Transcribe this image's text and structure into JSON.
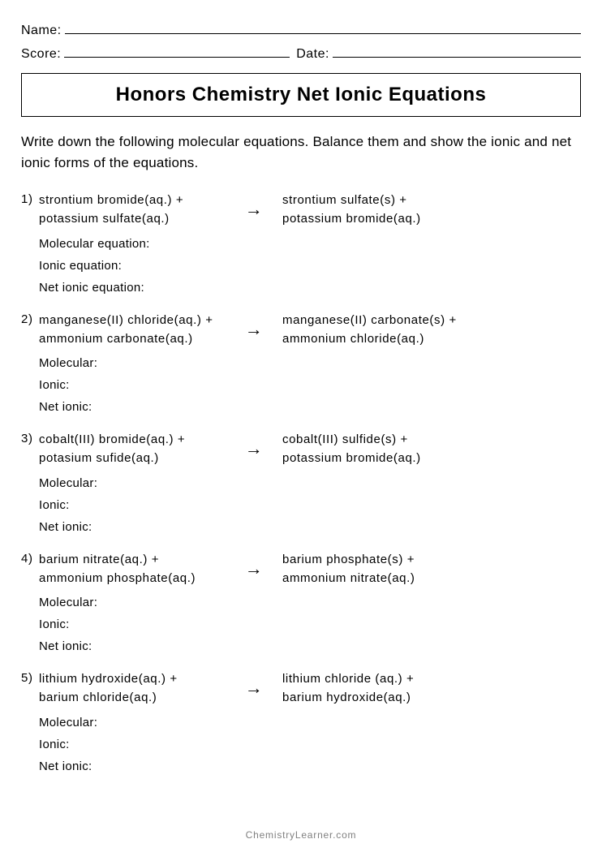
{
  "header": {
    "name_label": "Name:",
    "score_label": "Score:",
    "date_label": "Date:"
  },
  "title": "Honors Chemistry Net Ionic Equations",
  "instructions": "Write down the following molecular equations. Balance them and show the ionic and net ionic forms of the equations.",
  "arrow": "→",
  "questions": [
    {
      "num": "1)",
      "reactant1": "strontium bromide(aq.) +",
      "reactant2": "potassium sulfate(aq.)",
      "product1": "strontium sulfate(s) +",
      "product2": "potassium bromide(aq.)",
      "sub1": "Molecular equation:",
      "sub2": "Ionic equation:",
      "sub3": "Net ionic equation:"
    },
    {
      "num": "2)",
      "reactant1": "manganese(II) chloride(aq.) +",
      "reactant2": "ammonium carbonate(aq.)",
      "product1": "manganese(II) carbonate(s) +",
      "product2": "ammonium chloride(aq.)",
      "sub1": "Molecular:",
      "sub2": "Ionic:",
      "sub3": "Net ionic:"
    },
    {
      "num": "3)",
      "reactant1": "cobalt(III) bromide(aq.) +",
      "reactant2": "potasium sufide(aq.)",
      "product1": "cobalt(III) sulfide(s) +",
      "product2": "potassium bromide(aq.)",
      "sub1": "Molecular:",
      "sub2": "Ionic:",
      "sub3": "Net ionic:"
    },
    {
      "num": "4)",
      "reactant1": "barium nitrate(aq.) +",
      "reactant2": "ammonium phosphate(aq.)",
      "product1": "barium phosphate(s) +",
      "product2": "ammonium nitrate(aq.)",
      "sub1": "Molecular:",
      "sub2": "Ionic:",
      "sub3": "Net ionic:"
    },
    {
      "num": "5)",
      "reactant1": "lithium hydroxide(aq.) +",
      "reactant2": "barium chloride(aq.)",
      "product1": "lithium chloride (aq.) +",
      "product2": "barium hydroxide(aq.)",
      "sub1": "Molecular:",
      "sub2": "Ionic:",
      "sub3": "Net ionic:"
    }
  ],
  "footer": "ChemistryLearner.com",
  "styling": {
    "page_bg": "#ffffff",
    "text_color": "#000000",
    "footer_color": "#808080",
    "border_color": "#000000",
    "title_fontsize": 24,
    "body_fontsize": 15,
    "instruction_fontsize": 17
  }
}
